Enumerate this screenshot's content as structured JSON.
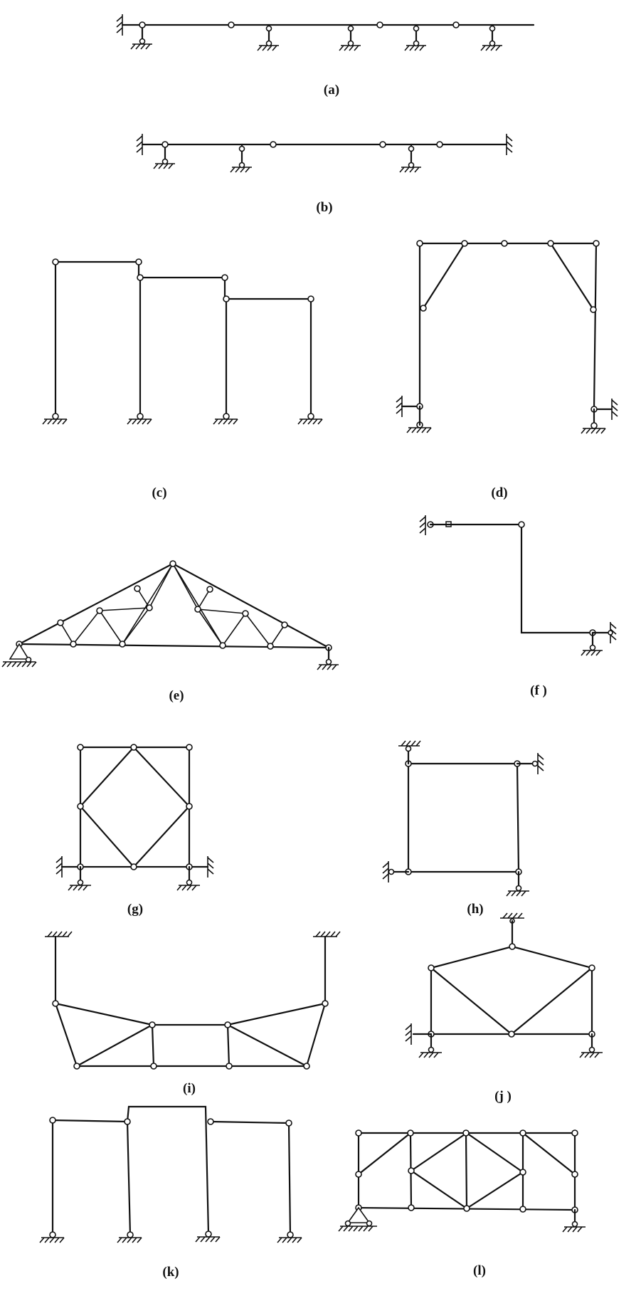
{
  "labels": {
    "a": "(a)",
    "b": "(b)",
    "c": "(c)",
    "d": "(d)",
    "e": "(e)",
    "f": "(f )",
    "g": "(g)",
    "h": "(h)",
    "i": "(i)",
    "j": "(j )",
    "k": "(k)",
    "l": "(l)"
  }
}
